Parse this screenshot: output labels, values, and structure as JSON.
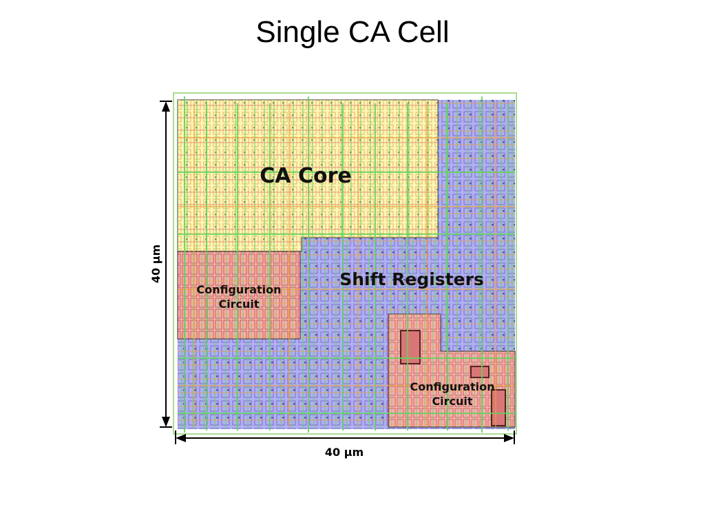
{
  "slide": {
    "title": "Single CA Cell"
  },
  "regions": {
    "ca_core": {
      "label": "CA Core"
    },
    "shift_registers": {
      "label": "Shift Registers"
    },
    "config_left": {
      "label_line1": "Configuration",
      "label_line2": "Circuit"
    },
    "config_right": {
      "label_line1": "Configuration",
      "label_line2": "Circuit"
    }
  },
  "dimensions": {
    "height_label": "40 µm",
    "width_label": "40 µm"
  },
  "colors": {
    "ca_core_fill": "#fbf5b8",
    "shift_fill": "#aeb0f0",
    "config_fill": "#f6b0b0",
    "wire_green": "#5fd35f",
    "wire_orange": "#e8a040",
    "wire_purple": "#9b6bd1",
    "wire_red": "#d9534f"
  }
}
